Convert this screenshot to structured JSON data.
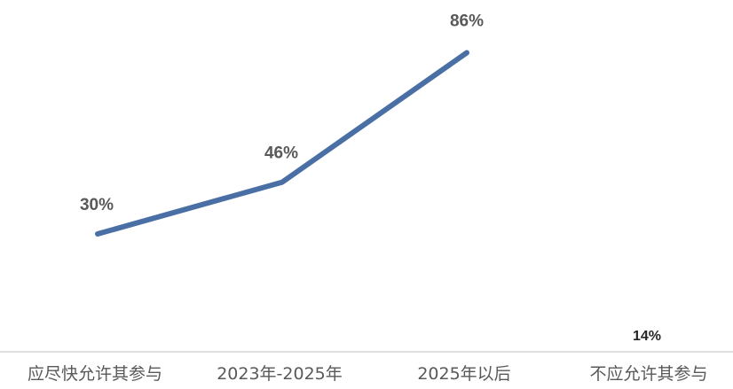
{
  "chart_data": {
    "type": "line",
    "categories": [
      "应尽快允许其参与",
      "2023年-2025年",
      "2025年以后",
      "不应允许其参与"
    ],
    "series": [
      {
        "values": [
          30,
          46,
          86,
          null
        ]
      }
    ],
    "data_labels": [
      "30%",
      "46%",
      "86%",
      "14%"
    ],
    "separate_value": 14,
    "grid": false,
    "legend": "none",
    "colors": {
      "line": "#4a6fa5",
      "labels": "#595959",
      "axis": "#bfbfbf"
    }
  }
}
